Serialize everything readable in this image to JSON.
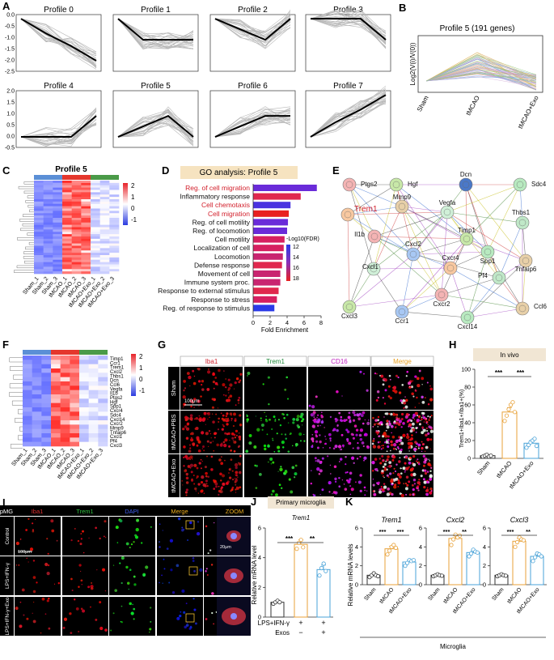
{
  "panels": {
    "A": {
      "label": "A",
      "profiles": [
        {
          "title": "Profile 0",
          "x": [
            0,
            1,
            2,
            3
          ],
          "y": [
            0,
            -0.7,
            -1.3,
            -2
          ]
        },
        {
          "title": "Profile 1",
          "x": [
            0,
            1,
            2,
            3
          ],
          "y": [
            0,
            -1,
            -1,
            -1
          ]
        },
        {
          "title": "Profile 2",
          "x": [
            0,
            1,
            2,
            3
          ],
          "y": [
            0,
            -0.5,
            -1,
            0
          ]
        },
        {
          "title": "Profile 3",
          "x": [
            0,
            1,
            2,
            3
          ],
          "y": [
            0,
            0,
            0,
            -1
          ]
        },
        {
          "title": "Profile 4",
          "x": [
            0,
            1,
            2,
            3
          ],
          "y": [
            0,
            0,
            0,
            1
          ]
        },
        {
          "title": "Profile 5",
          "x": [
            0,
            1,
            2,
            3
          ],
          "y": [
            0,
            0.5,
            1,
            0
          ]
        },
        {
          "title": "Profile 6",
          "x": [
            0,
            1,
            2,
            3
          ],
          "y": [
            0,
            0.5,
            1,
            1
          ]
        },
        {
          "title": "Profile 7",
          "x": [
            0,
            1,
            2,
            3
          ],
          "y": [
            0,
            0.7,
            1.3,
            2
          ]
        }
      ],
      "top_ticks": [
        "0.0",
        "-0.5",
        "-1.0",
        "-1.5",
        "-2.0",
        "-2.5"
      ],
      "bottom_ticks": [
        "2.0",
        "1.5",
        "1.0",
        "0.5",
        "0.0",
        "-0.5"
      ]
    },
    "B": {
      "label": "B",
      "title": "Profile 5 (191 genes)",
      "ylabel": "Log2(V(i)/V(0))",
      "categories": [
        "Sham",
        "tMCAO",
        "tMCAO+Exo"
      ]
    },
    "C": {
      "label": "C",
      "title": "Profile 5",
      "columns": [
        "Sham_1",
        "Sham_2",
        "Sham_3",
        "tMCAO_1",
        "tMCAO_2",
        "tMCAO_3",
        "tMCAO+Exo_1",
        "tMCAO+Exo_2",
        "tMCAO+Exo_3"
      ],
      "legend": [
        "2",
        "1",
        "0",
        "-1"
      ]
    },
    "D": {
      "label": "D",
      "title": "GO analysis: Profile 5",
      "xlabel": "Fold Enrichment",
      "xticks": [
        "0",
        "2",
        "4",
        "6",
        "8"
      ],
      "legend_title": "-Log10(FDR)",
      "legend_ticks": [
        "12",
        "14",
        "16",
        "18"
      ],
      "terms": [
        {
          "name": "Reg. of cell migration",
          "value": 7.5,
          "highlight": true,
          "color": "#6a2bd9"
        },
        {
          "name": "Inflammatory response",
          "value": 5.6,
          "highlight": false,
          "color": "#e0284e"
        },
        {
          "name": "Cell chemotaxis",
          "value": 4.4,
          "highlight": true,
          "color": "#4a33e0"
        },
        {
          "name": "Cell migration",
          "value": 4.2,
          "highlight": true,
          "color": "#e82020"
        },
        {
          "name": "Reg. of cell motility",
          "value": 4.1,
          "highlight": false,
          "color": "#6a2bd9"
        },
        {
          "name": "Reg. of locomotion",
          "value": 4.0,
          "highlight": false,
          "color": "#6a2bd9"
        },
        {
          "name": "Cell motility",
          "value": 3.7,
          "highlight": false,
          "color": "#d62060"
        },
        {
          "name": "Localization of cell",
          "value": 3.6,
          "highlight": false,
          "color": "#d62060"
        },
        {
          "name": "Locomotion",
          "value": 3.5,
          "highlight": false,
          "color": "#c92570"
        },
        {
          "name": "Defense response",
          "value": 3.4,
          "highlight": false,
          "color": "#e0284e"
        },
        {
          "name": "Movement of cell",
          "value": 3.2,
          "highlight": false,
          "color": "#c92570"
        },
        {
          "name": "Immune system proc.",
          "value": 3.2,
          "highlight": false,
          "color": "#c92570"
        },
        {
          "name": "Response to external stimulus",
          "value": 3.0,
          "highlight": false,
          "color": "#e0284e"
        },
        {
          "name": "Response to stress",
          "value": 2.8,
          "highlight": false,
          "color": "#d62060"
        },
        {
          "name": "Reg. of response to stimulus",
          "value": 2.5,
          "highlight": false,
          "color": "#2a3ae8"
        }
      ]
    },
    "E": {
      "label": "E",
      "nodes": [
        {
          "name": "Ptgs2",
          "highlight": false
        },
        {
          "name": "Hgf",
          "highlight": false
        },
        {
          "name": "Dcn",
          "highlight": false
        },
        {
          "name": "Sdc4",
          "highlight": false
        },
        {
          "name": "Mmp9",
          "highlight": false
        },
        {
          "name": "Vegfa",
          "highlight": false
        },
        {
          "name": "Trem1",
          "highlight": true
        },
        {
          "name": "Thbs1",
          "highlight": false
        },
        {
          "name": "Il1b",
          "highlight": false
        },
        {
          "name": "Timp1",
          "highlight": false
        },
        {
          "name": "Cxcl2",
          "highlight": false
        },
        {
          "name": "Spp1",
          "highlight": false
        },
        {
          "name": "Tnfaip6",
          "highlight": false
        },
        {
          "name": "Cxcl1",
          "highlight": false
        },
        {
          "name": "Cxcr4",
          "highlight": false
        },
        {
          "name": "Pf4",
          "highlight": false
        },
        {
          "name": "Cxcr2",
          "highlight": false
        },
        {
          "name": "Cxcl3",
          "highlight": false
        },
        {
          "name": "Ccr1",
          "highlight": false
        },
        {
          "name": "Cxcl14",
          "highlight": false
        },
        {
          "name": "Ccl6",
          "highlight": false
        }
      ]
    },
    "F": {
      "label": "F",
      "genes": [
        "Timp1",
        "Ccr1",
        "Trem1",
        "Cxcl2",
        "Thbs1",
        "Dcn",
        "Ccl6",
        "Vegfa",
        "Il1b",
        "Ptgs2",
        "Hgf",
        "Spp1",
        "Cxcr4",
        "Sdc4",
        "Cxcl14",
        "Cxcr2",
        "Mmp9",
        "Tnfaip6",
        "Cxcl1",
        "Pf4",
        "Cxcl3"
      ],
      "columns": [
        "Sham_1",
        "Sham_2",
        "Sham_3",
        "tMCAO_1",
        "tMCAO_2",
        "tMCAO_3",
        "tMCAO+Exo_1",
        "tMCAO+Exo_2",
        "tMCAO+Exo_3"
      ],
      "legend": [
        "2",
        "1",
        "0",
        "-1"
      ]
    },
    "G": {
      "label": "G",
      "headers": [
        "Iba1",
        "Trem1",
        "CD16",
        "Merge"
      ],
      "rows": [
        "Sham",
        "tMCAO+PBS",
        "tMCAO+Exo"
      ],
      "scale": "100μm"
    },
    "H": {
      "label": "H",
      "title": "In vivo",
      "ylabel": "Trem1+Iba1+/Iba1+(%)",
      "yticks": [
        "0",
        "20",
        "40",
        "60",
        "80",
        "100"
      ],
      "sig": [
        "***",
        "***"
      ]
    },
    "I": {
      "label": "I",
      "headers": [
        "pMG",
        "Iba1",
        "Trem1",
        "DAPI",
        "Merge",
        "ZOOM"
      ],
      "rows": [
        "Control",
        "LPS+IFN-γ",
        "LPS+IFN-γ+Exo"
      ],
      "scale1": "100μm",
      "scale2": "20μm"
    },
    "J": {
      "label": "J",
      "title": "Primary microglia",
      "gene": "Trem1",
      "ylabel": "Relative mRNA level",
      "yticks": [
        "0",
        "2",
        "4",
        "6"
      ],
      "sig": [
        "***",
        "**"
      ],
      "row1_label": "LPS+IFN-γ",
      "row1": [
        "−",
        "+",
        "+"
      ],
      "row2_label": "Exos",
      "row2": [
        "−",
        "−",
        "+"
      ]
    },
    "K": {
      "label": "K",
      "ylabel": "Relative mRNA levels",
      "footer": "Microglia",
      "genes": [
        "Trem1",
        "Cxcl2",
        "Cxcl3"
      ],
      "sig": [
        "***",
        "***",
        "***",
        "**",
        "***",
        "**"
      ]
    }
  },
  "chart_data": [
    {
      "type": "bar",
      "title": "GO analysis: Profile 5",
      "xlabel": "Fold Enrichment",
      "xlim": [
        0,
        8
      ],
      "categories": [
        "Reg. of cell migration",
        "Inflammatory response",
        "Cell chemotaxis",
        "Cell migration",
        "Reg. of cell motility",
        "Reg. of locomotion",
        "Cell motility",
        "Localization of cell",
        "Locomotion",
        "Defense response",
        "Movement of cell",
        "Immune system proc.",
        "Response to external stimulus",
        "Response to stress",
        "Reg. of response to stimulus"
      ],
      "values": [
        7.5,
        5.6,
        4.4,
        4.2,
        4.1,
        4.0,
        3.7,
        3.6,
        3.5,
        3.4,
        3.2,
        3.2,
        3.0,
        2.8,
        2.5
      ]
    },
    {
      "type": "bar",
      "title": "In vivo",
      "ylabel": "Trem1+Iba1+/Iba1+(%)",
      "ylim": [
        0,
        100
      ],
      "categories": [
        "Sham",
        "tMCAO",
        "tMCAO+Exo"
      ],
      "values": [
        3,
        52,
        17
      ],
      "errors": [
        1,
        5,
        3
      ],
      "points": [
        [
          2,
          3,
          4,
          2,
          3
        ],
        [
          42,
          48,
          55,
          60,
          63,
          52
        ],
        [
          12,
          15,
          18,
          20,
          22,
          14
        ]
      ]
    },
    {
      "type": "bar",
      "title": "Primary microglia Trem1",
      "ylabel": "Relative mRNA level",
      "ylim": [
        0,
        6
      ],
      "categories": [
        "Control",
        "LPS+IFN-γ",
        "LPS+IFN-γ+Exos"
      ],
      "values": [
        1.0,
        4.9,
        3.2
      ],
      "errors": [
        0.1,
        0.3,
        0.3
      ],
      "points": [
        [
          0.9,
          1.0,
          1.1,
          1.0
        ],
        [
          4.6,
          5.0,
          5.2,
          4.7
        ],
        [
          2.8,
          3.3,
          3.6,
          3.1
        ]
      ]
    },
    {
      "type": "bar",
      "title": "Trem1",
      "ylabel": "Relative mRNA levels",
      "ylim": [
        0,
        6
      ],
      "categories": [
        "Sham",
        "tMCAO",
        "tMCAO+Exo"
      ],
      "values": [
        1.0,
        3.8,
        2.4
      ],
      "errors": [
        0.1,
        0.25,
        0.2
      ],
      "points": [
        [
          0.8,
          1.0,
          1.2,
          1.0,
          0.9
        ],
        [
          3.2,
          3.6,
          4.0,
          4.2,
          3.9
        ],
        [
          2.0,
          2.3,
          2.6,
          2.5,
          2.6
        ]
      ]
    },
    {
      "type": "bar",
      "title": "Cxcl2",
      "ylim": [
        0,
        6
      ],
      "categories": [
        "Sham",
        "tMCAO",
        "tMCAO+Exo"
      ],
      "values": [
        1.0,
        4.9,
        3.4
      ],
      "errors": [
        0.1,
        0.3,
        0.2
      ],
      "points": [
        [
          0.9,
          1.0,
          1.1,
          1.0,
          0.95
        ],
        [
          4.2,
          4.8,
          5.3,
          5.0,
          5.2
        ],
        [
          3.0,
          3.3,
          3.7,
          3.5,
          3.4
        ]
      ]
    },
    {
      "type": "bar",
      "title": "Cxcl3",
      "ylim": [
        0,
        6
      ],
      "categories": [
        "Sham",
        "tMCAO",
        "tMCAO+Exo"
      ],
      "values": [
        1.0,
        4.6,
        3.0
      ],
      "errors": [
        0.1,
        0.3,
        0.2
      ],
      "points": [
        [
          0.9,
          1.0,
          1.1,
          1.0,
          0.95
        ],
        [
          4.0,
          4.5,
          5.0,
          4.8,
          4.7
        ],
        [
          2.5,
          2.9,
          3.3,
          3.2,
          3.0
        ]
      ]
    }
  ]
}
